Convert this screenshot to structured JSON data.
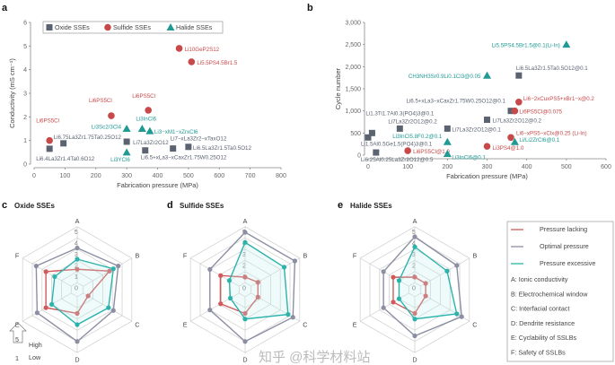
{
  "colors": {
    "oxide": "#5b6270",
    "sulfide": "#c8494a",
    "halide": "#1f9a94",
    "lacking": "#d05a5c",
    "optimal": "#8c8fa3",
    "excessive": "#2bb3ab",
    "teal_fill": "#bfeeea"
  },
  "watermark": "知乎 @科学材料站",
  "chart_data": [
    {
      "panel": "a",
      "type": "scatter",
      "xlabel": "Fabrication pressure (MPa)",
      "ylabel": "Conductivity (mS cm⁻¹)",
      "xlim": [
        0,
        800
      ],
      "ylim": [
        0,
        6
      ],
      "xticks": [
        0,
        100,
        200,
        300,
        400,
        500,
        600,
        700,
        800
      ],
      "yticks": [
        0,
        1,
        2,
        3,
        4,
        5,
        6
      ],
      "legend": {
        "placement": "top-left",
        "entries": [
          "Oxide SSEs",
          "Sulfide SSEs",
          "Halide SSEs"
        ]
      },
      "series": [
        {
          "name": "Oxide SSEs",
          "marker": "square",
          "points": [
            {
              "x": 50,
              "y": 0.65,
              "label": "Li6.4La3Zr1.4Ta0.6O12"
            },
            {
              "x": 95,
              "y": 0.88,
              "label": "Li6.75La3Zr1.75Ta0.25O12"
            },
            {
              "x": 300,
              "y": 0.95,
              "label": "Li7La3Zr2O12"
            },
            {
              "x": 360,
              "y": 0.58,
              "label": "Li6.5+xLa3−xCaxZr1.75W0.25O12"
            },
            {
              "x": 450,
              "y": 0.66,
              "label": "Li7−xLa3Zr2−xTaxO12"
            },
            {
              "x": 500,
              "y": 0.73,
              "label": "Li6.5La3Zr1.5Ta0.5O12"
            }
          ]
        },
        {
          "name": "Sulfide SSEs",
          "marker": "circle",
          "points": [
            {
              "x": 50,
              "y": 1.0,
              "label": "Li6PS5Cl"
            },
            {
              "x": 250,
              "y": 2.05,
              "label": "Li6PS5Cl"
            },
            {
              "x": 370,
              "y": 2.28,
              "label": "Li6PS5Cl"
            },
            {
              "x": 470,
              "y": 4.9,
              "label": "Li10GeP2S12"
            },
            {
              "x": 510,
              "y": 4.33,
              "label": "Li5.5PS4.5Br1.5"
            }
          ]
        },
        {
          "name": "Halide SSEs",
          "marker": "triangle",
          "points": [
            {
              "x": 300,
              "y": 1.5,
              "label": "Li3Sc2/3Cl4"
            },
            {
              "x": 350,
              "y": 1.5,
              "label": "Li3InCl6"
            },
            {
              "x": 375,
              "y": 1.4,
              "label": "Li3−xM1−xZrxCl6"
            },
            {
              "x": 300,
              "y": 0.5,
              "label": "Li3YCl6"
            }
          ]
        }
      ]
    },
    {
      "panel": "b",
      "type": "scatter",
      "xlabel": "Fabrication pressure (MPa)",
      "ylabel": "Cycle number",
      "xlim": [
        0,
        600
      ],
      "ylim": [
        0,
        3000
      ],
      "xticks": [
        0,
        100,
        200,
        300,
        400,
        500,
        600
      ],
      "yticks": [
        "0",
        "500",
        "1,000",
        "1,500",
        "2,000",
        "2,500",
        "3,000"
      ],
      "series": [
        {
          "marker": "square",
          "color_key": "oxide",
          "points": [
            {
              "x": 10,
              "y": 500,
              "label": "Li1.3Ti1.7Al0.3(PO4)3@0.1"
            },
            {
              "x": 0,
              "y": 400,
              "label": "Li1.5Al0.5Ge1.5(PO4)3@0.1"
            },
            {
              "x": 20,
              "y": 60,
              "label": "Li6.25Al0.25La3Zr2O12@0.5"
            },
            {
              "x": 80,
              "y": 600,
              "label": "Li7La3Zr2O12@0.2"
            },
            {
              "x": 200,
              "y": 600,
              "label": "Li7La3Zr2O12@0.1"
            },
            {
              "x": 300,
              "y": 800,
              "label": "Li7La3Zr2O12@0.2"
            },
            {
              "x": 360,
              "y": 1000,
              "label": "Li6.5+xLa3−xCaxZr1.75W0.25O12@0.1"
            },
            {
              "x": 380,
              "y": 1800,
              "label": "Li6.5La3Zr1.5Ta0.5O12@0.1"
            }
          ]
        },
        {
          "marker": "circle",
          "color_key": "sulfide",
          "points": [
            {
              "x": 100,
              "y": 100,
              "label": "Li6PS5Cl@1.0"
            },
            {
              "x": 300,
              "y": 200,
              "label": "Li3PS4@1.0"
            },
            {
              "x": 360,
              "y": 400,
              "label": "Li6−xPS5−xClx@0.25 (Li-In)"
            },
            {
              "x": 370,
              "y": 1000,
              "label": "Li6PS5Cl@0.075"
            },
            {
              "x": 380,
              "y": 1200,
              "label": "Li6−2xCuxPS5+xBr1−x@0.2"
            }
          ]
        },
        {
          "marker": "triangle",
          "color_key": "halide",
          "points": [
            {
              "x": 500,
              "y": 2500,
              "label": "Li5.5PS4.5Br1.5@0.1(Li-In)"
            },
            {
              "x": 300,
              "y": 1800,
              "label": "CH3NH3Sr0.9Li0.1Cl3@0.05"
            },
            {
              "x": 200,
              "y": 300,
              "label": "Li3InCl5.8F0.2@0.1"
            },
            {
              "x": 200,
              "y": 30,
              "label": "Li3InCl6@0.1"
            },
            {
              "x": 370,
              "y": 300,
              "label": "Li/Li2ZrCl6@0.1"
            }
          ]
        }
      ]
    },
    {
      "panel": "c",
      "type": "radar",
      "title": "Oxide SSEs",
      "axes": [
        "A",
        "B",
        "C",
        "D",
        "E",
        "F"
      ],
      "ring_labels": [
        "0",
        "1",
        "2",
        "3",
        "4",
        "5"
      ],
      "series": [
        {
          "name": "Pressure lacking",
          "values": [
            1.7,
            3.2,
            1.0,
            2.0,
            3.1,
            3.1
          ]
        },
        {
          "name": "Optimal pressure",
          "values": [
            3.6,
            4.1,
            3.6,
            4.5,
            4.0,
            4.1
          ]
        },
        {
          "name": "Pressure excessive",
          "values": [
            2.6,
            3.6,
            3.1,
            3.0,
            2.5,
            2.2
          ]
        }
      ]
    },
    {
      "panel": "d",
      "type": "radar",
      "title": "Sulfide SSEs",
      "axes": [
        "A",
        "B",
        "C",
        "D",
        "E",
        "F"
      ],
      "ring_labels": [
        "0",
        "1",
        "2",
        "3",
        "4",
        "5"
      ],
      "series": [
        {
          "name": "Pressure lacking",
          "values": [
            1.0,
            1.2,
            1.2,
            2.0,
            2.4,
            2.4
          ]
        },
        {
          "name": "Optimal pressure",
          "values": [
            5.0,
            5.0,
            4.8,
            4.5,
            3.5,
            3.5
          ]
        },
        {
          "name": "Pressure excessive",
          "values": [
            4.1,
            3.9,
            4.3,
            2.5,
            1.4,
            1.5
          ]
        }
      ]
    },
    {
      "panel": "e",
      "type": "radar",
      "title": "Halide SSEs",
      "axes": [
        "A",
        "B",
        "C",
        "D",
        "E",
        "F"
      ],
      "ring_labels": [
        "0",
        "1",
        "2",
        "3",
        "4",
        "5"
      ],
      "series": [
        {
          "name": "Pressure lacking",
          "values": [
            1.0,
            1.0,
            1.0,
            2.0,
            2.1,
            2.1
          ]
        },
        {
          "name": "Optimal pressure",
          "values": [
            4.6,
            4.2,
            4.7,
            4.0,
            3.1,
            3.1
          ]
        },
        {
          "name": "Pressure excessive",
          "values": [
            3.7,
            3.2,
            4.2,
            2.5,
            1.5,
            1.5
          ]
        }
      ]
    }
  ],
  "scale_key": {
    "high_value": "5",
    "high_label": "High",
    "low_value": "1",
    "low_label": "Low"
  },
  "legend": {
    "series": [
      "Pressure lacking",
      "Optimal pressure",
      "Pressure excessive"
    ],
    "axes": [
      "A: Ionic conductivity",
      "B: Electrochemical window",
      "C: Interfacial contact",
      "D: Dendrite resistance",
      "E: Cyclability of SSLBs",
      "F: Safety of SSLBs"
    ]
  }
}
